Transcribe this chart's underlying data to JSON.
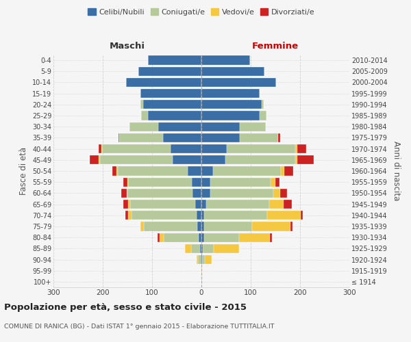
{
  "age_groups": [
    "100+",
    "95-99",
    "90-94",
    "85-89",
    "80-84",
    "75-79",
    "70-74",
    "65-69",
    "60-64",
    "55-59",
    "50-54",
    "45-49",
    "40-44",
    "35-39",
    "30-34",
    "25-29",
    "20-24",
    "15-19",
    "10-14",
    "5-9",
    "0-4"
  ],
  "birth_years": [
    "≤ 1914",
    "1915-1919",
    "1920-1924",
    "1925-1929",
    "1930-1934",
    "1935-1939",
    "1940-1944",
    "1945-1949",
    "1950-1954",
    "1955-1959",
    "1960-1964",
    "1965-1969",
    "1970-1974",
    "1975-1979",
    "1980-1984",
    "1985-1989",
    "1990-1994",
    "1995-1999",
    "2000-2004",
    "2005-2009",
    "2010-2014"
  ],
  "male": {
    "celibi": [
      0,
      0,
      2,
      3,
      5,
      8,
      10,
      12,
      18,
      20,
      28,
      58,
      63,
      78,
      88,
      108,
      118,
      123,
      153,
      128,
      108
    ],
    "coniugati": [
      0,
      0,
      5,
      18,
      72,
      108,
      132,
      132,
      132,
      128,
      142,
      148,
      138,
      88,
      58,
      14,
      5,
      0,
      0,
      0,
      0
    ],
    "vedovi": [
      0,
      0,
      3,
      12,
      8,
      8,
      6,
      5,
      2,
      2,
      2,
      2,
      2,
      0,
      0,
      0,
      0,
      0,
      0,
      0,
      0
    ],
    "divorziati": [
      0,
      0,
      0,
      0,
      4,
      0,
      6,
      10,
      10,
      8,
      8,
      18,
      6,
      2,
      0,
      0,
      0,
      0,
      0,
      0,
      0
    ]
  },
  "female": {
    "nubili": [
      0,
      0,
      2,
      3,
      5,
      5,
      5,
      10,
      18,
      18,
      23,
      48,
      52,
      78,
      78,
      118,
      122,
      118,
      152,
      128,
      98
    ],
    "coniugate": [
      0,
      0,
      5,
      22,
      72,
      98,
      128,
      128,
      128,
      122,
      138,
      142,
      138,
      78,
      52,
      14,
      5,
      0,
      0,
      0,
      0
    ],
    "vedove": [
      0,
      2,
      14,
      52,
      62,
      78,
      68,
      28,
      14,
      10,
      7,
      5,
      5,
      0,
      0,
      0,
      0,
      0,
      0,
      0,
      0
    ],
    "divorziate": [
      0,
      0,
      0,
      0,
      4,
      4,
      4,
      18,
      14,
      9,
      18,
      33,
      18,
      4,
      0,
      0,
      0,
      0,
      0,
      0,
      0
    ]
  },
  "colors": {
    "celibi": "#3a6ea5",
    "coniugati": "#b5c99a",
    "vedovi": "#f5c842",
    "divorziati": "#cc2222"
  },
  "xlim": 300,
  "title": "Popolazione per età, sesso e stato civile - 2015",
  "subtitle": "COMUNE DI RANICA (BG) - Dati ISTAT 1° gennaio 2015 - Elaborazione TUTTITALIA.IT",
  "ylabel_left": "Fasce di età",
  "ylabel_right": "Anni di nascita",
  "background_color": "#f5f5f5",
  "grid_color": "#cccccc"
}
